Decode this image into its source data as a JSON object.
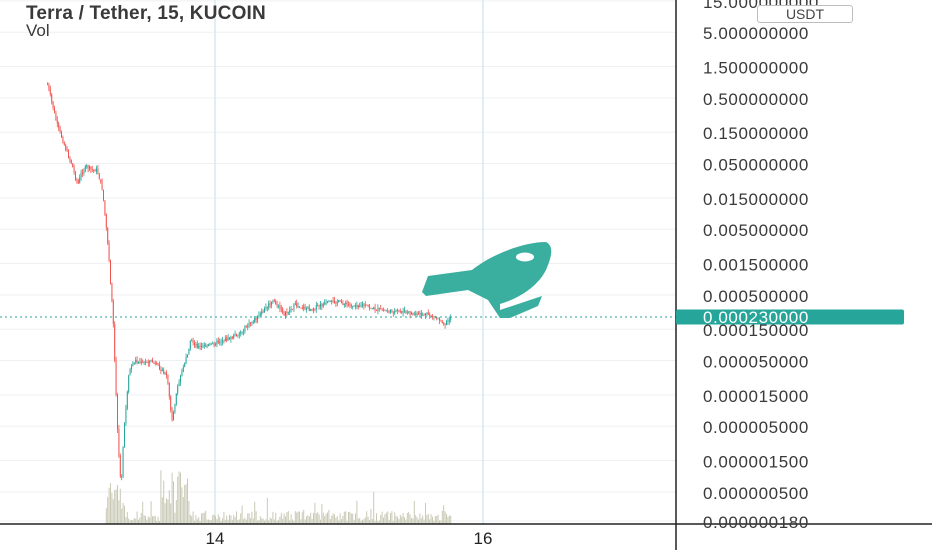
{
  "header": {
    "title": "Terra / Tether, 15, KUCOIN",
    "volume_label": "Vol"
  },
  "currency_badge": "USDT",
  "colors": {
    "up": "#26a69a",
    "down": "#ef5350",
    "accent": "#3aaf9f",
    "grid": "#eef0f3",
    "volume": "#c9c9b5"
  },
  "icons": [
    "rocket-icon"
  ],
  "chart_data": {
    "type": "candlestick",
    "y_scale": "log",
    "y_ticks": [
      "15.000000000",
      "5.000000000",
      "1.500000000",
      "0.500000000",
      "0.150000000",
      "0.050000000",
      "0.015000000",
      "0.005000000",
      "0.001500000",
      "0.000500000",
      "0.000150000",
      "0.000050000",
      "0.000015000",
      "0.000005000",
      "0.000001500",
      "0.000000500",
      "0.000000180"
    ],
    "x_ticks": [
      "14",
      "16"
    ],
    "last_price": "0.000230000",
    "series": [
      {
        "type": "price",
        "points": [
          [
            12.75,
            0.8
          ],
          [
            12.78,
            0.45
          ],
          [
            12.82,
            0.2
          ],
          [
            12.86,
            0.12
          ],
          [
            12.88,
            0.09
          ],
          [
            12.9,
            0.07
          ],
          [
            12.93,
            0.05
          ],
          [
            12.96,
            0.03
          ],
          [
            12.98,
            0.025
          ],
          [
            13.0,
            0.035
          ],
          [
            13.04,
            0.045
          ],
          [
            13.08,
            0.04
          ],
          [
            13.12,
            0.04
          ],
          [
            13.16,
            0.02
          ],
          [
            13.2,
            0.003
          ],
          [
            13.24,
            0.0002
          ],
          [
            13.26,
            2e-05
          ],
          [
            13.28,
            2e-06
          ],
          [
            13.3,
            6e-07
          ],
          [
            13.32,
            4e-06
          ],
          [
            13.36,
            3.5e-05
          ],
          [
            13.4,
            5e-05
          ],
          [
            13.46,
            4.5e-05
          ],
          [
            13.52,
            5e-05
          ],
          [
            13.58,
            4e-05
          ],
          [
            13.64,
            3e-05
          ],
          [
            13.68,
            6e-06
          ],
          [
            13.72,
            2e-05
          ],
          [
            13.78,
            5e-05
          ],
          [
            13.82,
            0.0001
          ],
          [
            13.88,
            8e-05
          ],
          [
            13.96,
            8.5e-05
          ],
          [
            14.04,
            0.0001
          ],
          [
            14.12,
            0.00011
          ],
          [
            14.2,
            0.00014
          ],
          [
            14.28,
            0.0002
          ],
          [
            14.34,
            0.00025
          ],
          [
            14.4,
            0.00035
          ],
          [
            14.44,
            0.0004
          ],
          [
            14.52,
            0.00025
          ],
          [
            14.6,
            0.00035
          ],
          [
            14.7,
            0.0003
          ],
          [
            14.8,
            0.00035
          ],
          [
            14.9,
            0.0004
          ],
          [
            15.0,
            0.00035
          ],
          [
            15.1,
            0.00035
          ],
          [
            15.2,
            0.0003
          ],
          [
            15.3,
            0.00028
          ],
          [
            15.4,
            0.00028
          ],
          [
            15.5,
            0.00025
          ],
          [
            15.6,
            0.00025
          ],
          [
            15.68,
            0.00021
          ],
          [
            15.72,
            0.00018
          ],
          [
            15.76,
            0.00023
          ]
        ]
      }
    ]
  }
}
